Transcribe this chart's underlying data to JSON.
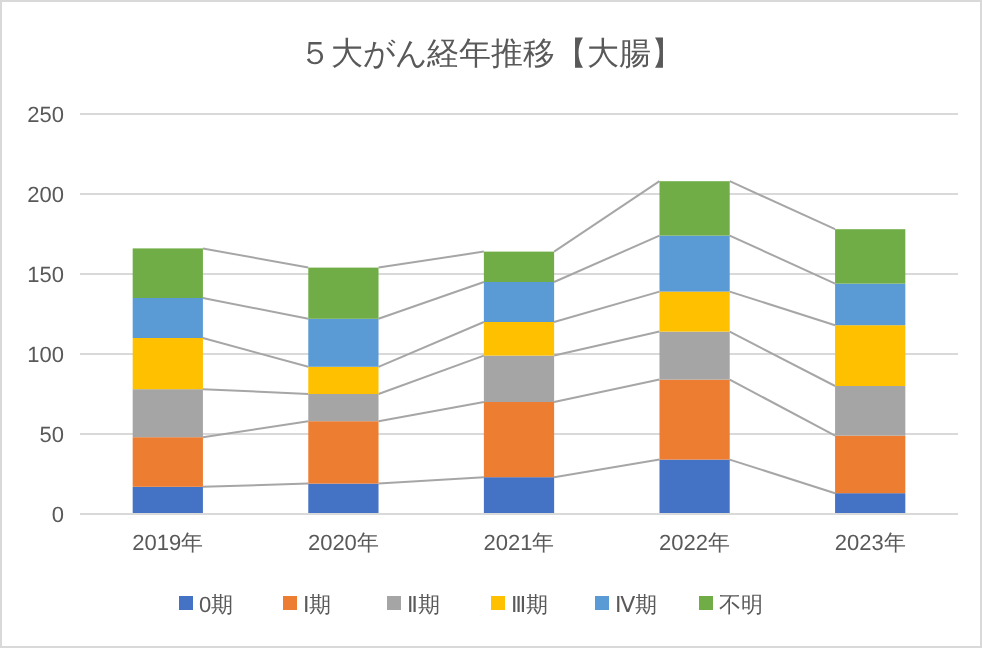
{
  "chart_data": {
    "type": "bar",
    "title": "５大がん経年推移【大腸】",
    "categories": [
      "2019年",
      "2020年",
      "2021年",
      "2022年",
      "2023年"
    ],
    "stacked": true,
    "series": [
      {
        "name": "0期",
        "color": "#4472c4",
        "values": [
          17,
          19,
          23,
          34,
          13
        ]
      },
      {
        "name": "Ⅰ期",
        "color": "#ed7d31",
        "values": [
          31,
          39,
          47,
          50,
          36
        ]
      },
      {
        "name": "Ⅱ期",
        "color": "#a5a5a5",
        "values": [
          30,
          17,
          29,
          30,
          31
        ]
      },
      {
        "name": "Ⅲ期",
        "color": "#ffc000",
        "values": [
          32,
          17,
          21,
          25,
          38
        ]
      },
      {
        "name": "Ⅳ期",
        "color": "#5b9bd5",
        "values": [
          25,
          30,
          25,
          35,
          26
        ]
      },
      {
        "name": "不明",
        "color": "#70ad47",
        "values": [
          31,
          32,
          19,
          34,
          34
        ]
      }
    ],
    "ylim": [
      0,
      250
    ],
    "yticks": [
      0,
      50,
      100,
      150,
      200,
      250
    ],
    "grid": "y",
    "legend": "bottom"
  }
}
